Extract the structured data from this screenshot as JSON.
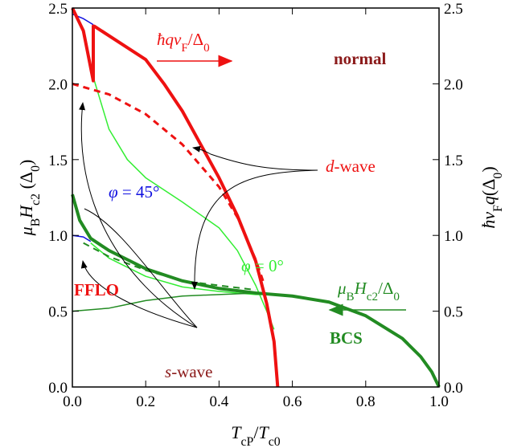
{
  "chart_data": {
    "type": "line",
    "xlabel": [
      {
        "text": "T",
        "italic": true
      },
      {
        "text": "cP",
        "sub": true
      },
      {
        "text": "/"
      },
      {
        "text": "T",
        "italic": true
      },
      {
        "text": "c0",
        "sub": true
      }
    ],
    "ylabel": [
      {
        "text": "μ",
        "italic": true
      },
      {
        "text": "B",
        "sub": true
      },
      {
        "text": "H",
        "italic": true
      },
      {
        "text": "c2",
        "sub": true
      },
      {
        "text": " (Δ"
      },
      {
        "text": "0",
        "sub": true
      },
      {
        "text": ")"
      }
    ],
    "y2label": [
      {
        "text": "ħv",
        "italic": true
      },
      {
        "text": "F",
        "sub": true
      },
      {
        "text": "q",
        "italic": true
      },
      {
        "text": "(Δ"
      },
      {
        "text": "0",
        "sub": true
      },
      {
        "text": ")"
      }
    ],
    "xlim": [
      0,
      1.0
    ],
    "ylim": [
      0,
      2.5
    ],
    "y2lim": [
      0,
      2.5
    ],
    "xticks": [
      {
        "value": 0,
        "label": "0.0"
      },
      {
        "value": 0.2,
        "label": "0.2"
      },
      {
        "value": 0.4,
        "label": "0.4"
      },
      {
        "value": 0.6,
        "label": "0.6"
      },
      {
        "value": 0.8,
        "label": "0.8"
      },
      {
        "value": 1.0,
        "label": "1.0"
      }
    ],
    "yticks": [
      {
        "value": 0,
        "label": "0.0"
      },
      {
        "value": 0.5,
        "label": "0.5"
      },
      {
        "value": 1.0,
        "label": "1.0"
      },
      {
        "value": 1.5,
        "label": "1.5"
      },
      {
        "value": 2.0,
        "label": "2.0"
      },
      {
        "value": 2.5,
        "label": "2.5"
      }
    ],
    "y2ticks": [
      {
        "value": 0,
        "label": "0.0"
      },
      {
        "value": 0.5,
        "label": "0.5"
      },
      {
        "value": 1.0,
        "label": "1.0"
      },
      {
        "value": 1.5,
        "label": "1.5"
      },
      {
        "value": 2.0,
        "label": "2.0"
      },
      {
        "value": 2.5,
        "label": "2.5"
      }
    ],
    "series": [
      {
        "color": "#1010e0",
        "width": 1.5,
        "x": [
          0,
          0.03,
          0.057
        ],
        "values": [
          2.46,
          2.43,
          2.39
        ]
      },
      {
        "color": "#1010e0",
        "width": 1.5,
        "x": [
          0,
          0.03,
          0.05
        ],
        "values": [
          1.0,
          0.99,
          0.96
        ]
      },
      {
        "color": "#33ee33",
        "width": 1.5,
        "x": [
          0.06,
          0.1,
          0.15,
          0.2,
          0.3,
          0.4,
          0.45,
          0.5,
          0.53,
          0.55
        ],
        "values": [
          2.02,
          1.7,
          1.5,
          1.38,
          1.22,
          1.05,
          0.9,
          0.67,
          0.5,
          0.38
        ]
      },
      {
        "color": "#33ee33",
        "width": 1.5,
        "x": [
          0.05,
          0.1,
          0.2,
          0.3,
          0.4,
          0.5,
          0.53
        ],
        "values": [
          0.95,
          0.85,
          0.73,
          0.66,
          0.63,
          0.61,
          0.61
        ]
      },
      {
        "color": "#228b22",
        "width": 1.5,
        "x": [
          0,
          0.1,
          0.2,
          0.3,
          0.4,
          0.5,
          0.53
        ],
        "values": [
          0.5,
          0.52,
          0.57,
          0.6,
          0.61,
          0.62,
          0.62
        ]
      },
      {
        "color": "#228b22",
        "width": 2,
        "dash": true,
        "x": [
          0.03,
          0.1,
          0.2,
          0.3,
          0.4,
          0.5
        ],
        "values": [
          0.95,
          0.86,
          0.77,
          0.7,
          0.67,
          0.64
        ]
      },
      {
        "color": "#228b22",
        "width": 4,
        "x": [
          0,
          0.02,
          0.05,
          0.1,
          0.2,
          0.3,
          0.4,
          0.5,
          0.6,
          0.7,
          0.8,
          0.9,
          0.95,
          0.98,
          1.0
        ],
        "values": [
          1.27,
          1.1,
          0.98,
          0.9,
          0.78,
          0.7,
          0.65,
          0.62,
          0.6,
          0.56,
          0.47,
          0.32,
          0.2,
          0.1,
          0
        ]
      },
      {
        "color": "#ee1111",
        "width": 3,
        "dash": true,
        "x": [
          0,
          0.1,
          0.2,
          0.3,
          0.4,
          0.45,
          0.5,
          0.52
        ],
        "values": [
          2.0,
          1.93,
          1.8,
          1.6,
          1.32,
          1.12,
          0.84,
          0.7
        ]
      },
      {
        "color": "#ee1111",
        "width": 4,
        "x": [
          0,
          0.03,
          0.057,
          0.057,
          0.06,
          0.13,
          0.2,
          0.25,
          0.3,
          0.35,
          0.4,
          0.45,
          0.5,
          0.53,
          0.55,
          0.56
        ],
        "values": [
          2.5,
          2.35,
          2.02,
          2.38,
          2.38,
          2.27,
          2.16,
          2.0,
          1.82,
          1.6,
          1.38,
          1.13,
          0.83,
          0.55,
          0.3,
          0
        ]
      }
    ],
    "annotations": [
      {
        "color": "#ee1111",
        "parts": [
          {
            "text": "ħqv",
            "italic": true
          },
          {
            "text": "F",
            "sub": true
          },
          {
            "text": "/Δ"
          },
          {
            "text": "0",
            "sub": true
          }
        ]
      },
      {
        "color": "#8b1a1a",
        "bold": true,
        "parts": [
          {
            "text": "normal"
          }
        ]
      },
      {
        "color": "#ee1111",
        "parts": [
          {
            "text": "d",
            "italic": true
          },
          {
            "text": "-wave"
          }
        ]
      },
      {
        "color": "#1010e0",
        "parts": [
          {
            "text": "φ",
            "italic": true
          },
          {
            "text": " = 45°"
          }
        ]
      },
      {
        "color": "#33ee33",
        "parts": [
          {
            "text": "φ",
            "italic": true
          },
          {
            "text": " = 0°"
          }
        ]
      },
      {
        "color": "#228b22",
        "parts": [
          {
            "text": "μ",
            "italic": true
          },
          {
            "text": "B",
            "sub": true
          },
          {
            "text": "H",
            "italic": true
          },
          {
            "text": "c2",
            "sub": true
          },
          {
            "text": "/Δ"
          },
          {
            "text": "0",
            "sub": true
          }
        ]
      },
      {
        "color": "#ee1111",
        "bold": true,
        "parts": [
          {
            "text": "FFLO"
          }
        ]
      },
      {
        "color": "#228b22",
        "bold": true,
        "parts": [
          {
            "text": "BCS"
          }
        ]
      },
      {
        "color": "#8b1a1a",
        "parts": [
          {
            "text": "s",
            "italic": true
          },
          {
            "text": "-wave"
          }
        ]
      }
    ]
  }
}
